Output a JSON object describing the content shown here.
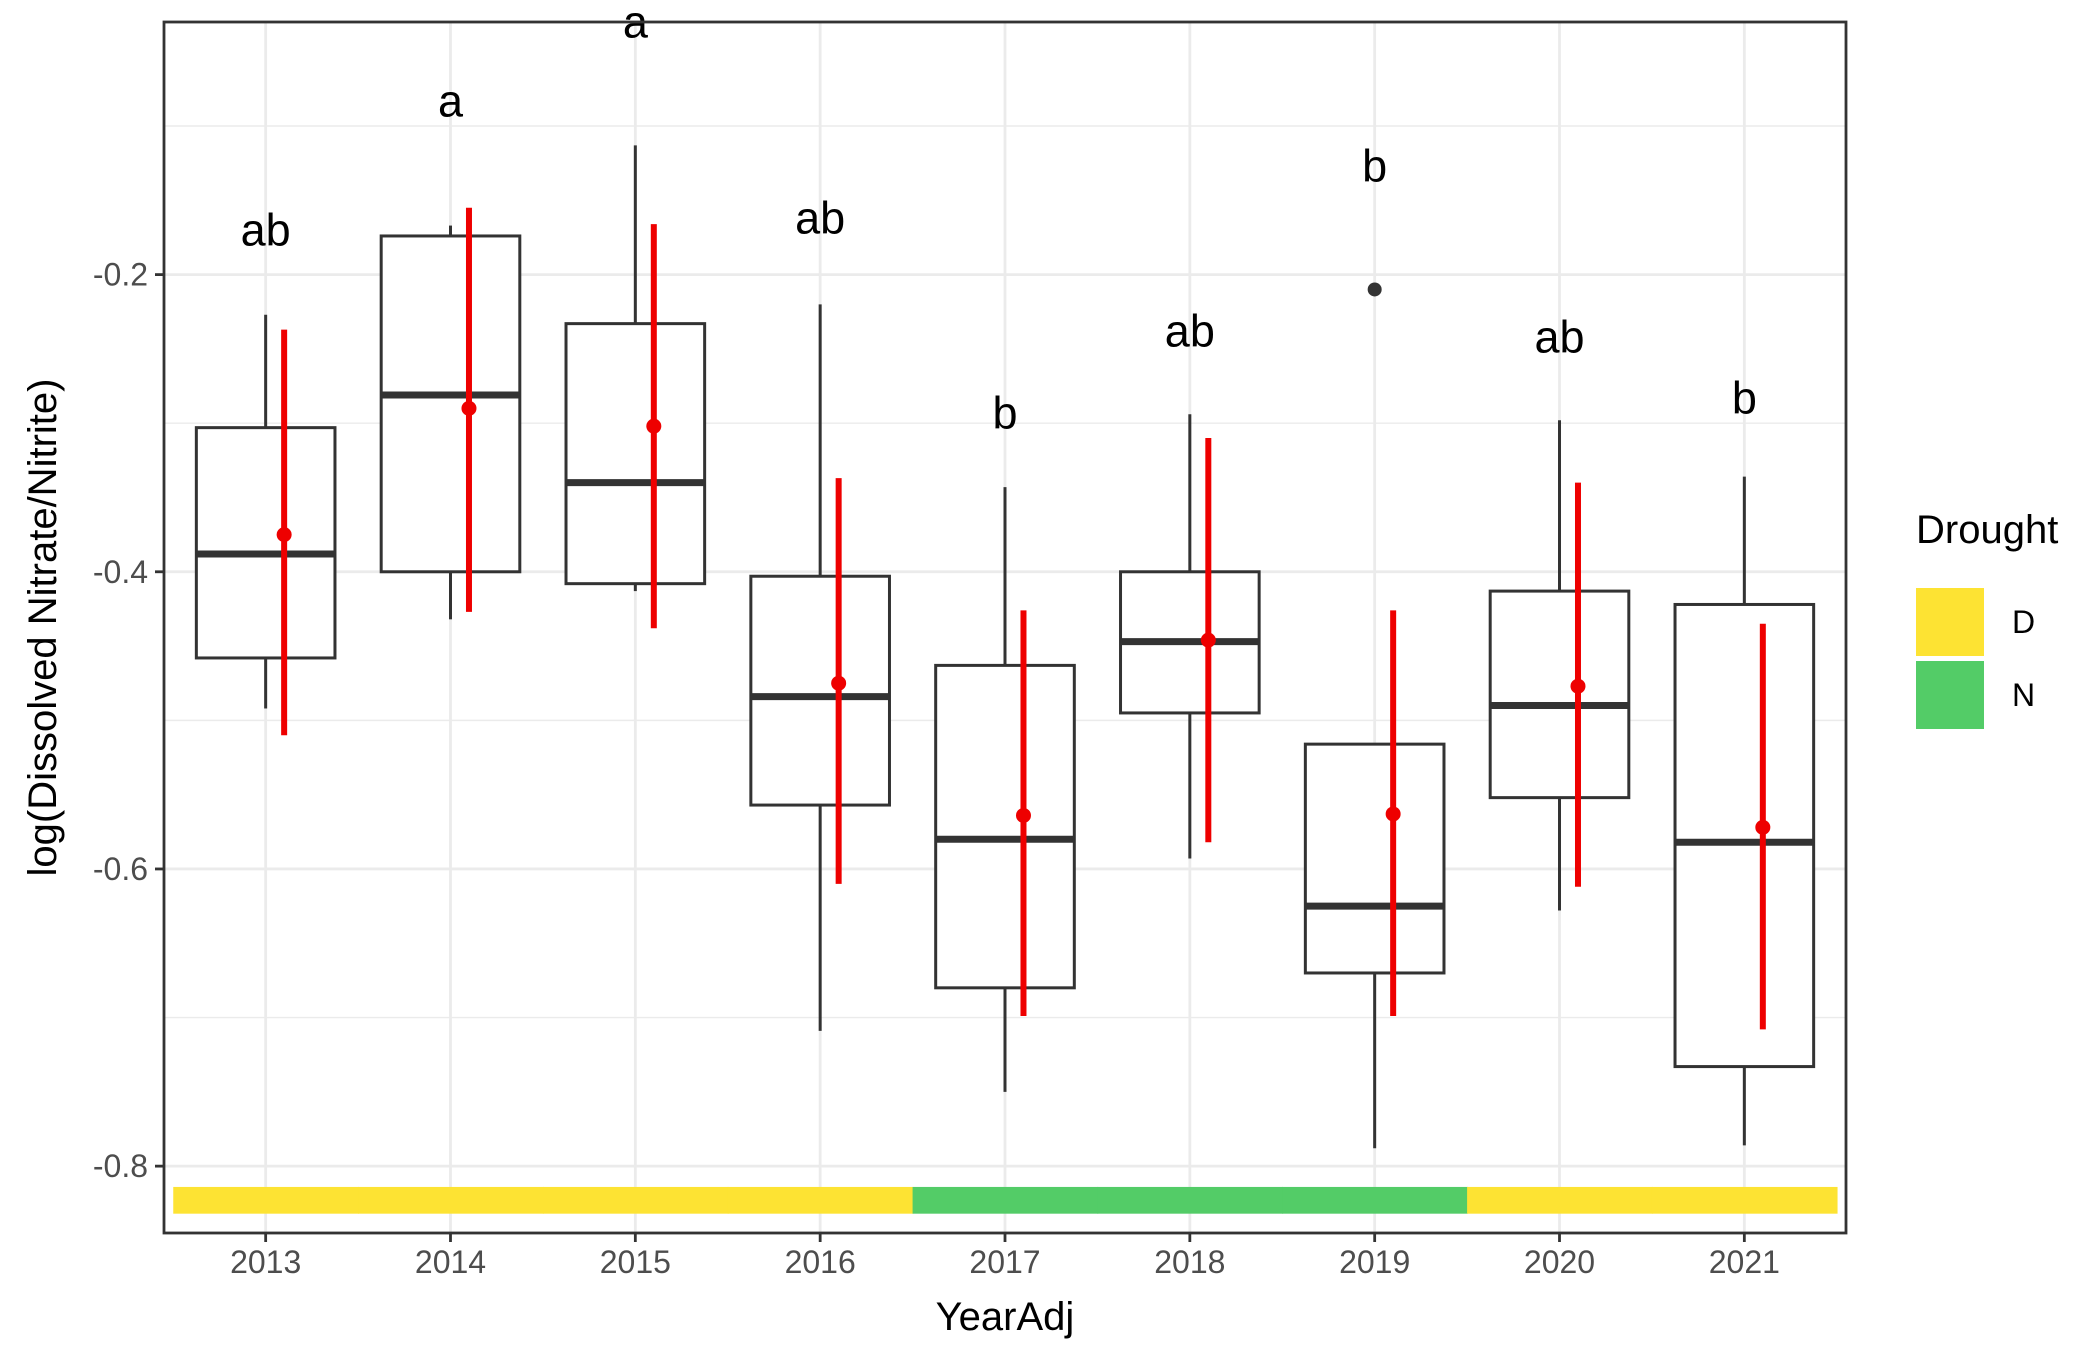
{
  "chart_data": {
    "type": "box",
    "xlabel": "YearAdj",
    "ylabel": "log(Dissolved Nitrate/Nitrite)",
    "categories": [
      "2013",
      "2014",
      "2015",
      "2016",
      "2017",
      "2018",
      "2019",
      "2020",
      "2021"
    ],
    "ylim": [
      -0.845,
      -0.03
    ],
    "yticks": [
      -0.8,
      -0.6,
      -0.4,
      -0.2
    ],
    "ytick_labels": [
      "-0.8",
      "-0.6",
      "-0.4",
      "-0.2"
    ],
    "grid": true,
    "boxes": [
      {
        "year": "2013",
        "min": -0.492,
        "q1": -0.458,
        "median": -0.388,
        "q3": -0.303,
        "max": -0.227,
        "outliers": []
      },
      {
        "year": "2014",
        "min": -0.432,
        "q1": -0.4,
        "median": -0.281,
        "q3": -0.174,
        "max": -0.167,
        "outliers": []
      },
      {
        "year": "2015",
        "min": -0.413,
        "q1": -0.408,
        "median": -0.34,
        "q3": -0.233,
        "max": -0.113,
        "outliers": []
      },
      {
        "year": "2016",
        "min": -0.709,
        "q1": -0.557,
        "median": -0.484,
        "q3": -0.403,
        "max": -0.22,
        "outliers": []
      },
      {
        "year": "2017",
        "min": -0.75,
        "q1": -0.68,
        "median": -0.58,
        "q3": -0.463,
        "max": -0.343,
        "outliers": []
      },
      {
        "year": "2018",
        "min": -0.593,
        "q1": -0.495,
        "median": -0.447,
        "q3": -0.4,
        "max": -0.294,
        "outliers": []
      },
      {
        "year": "2019",
        "min": -0.788,
        "q1": -0.67,
        "median": -0.625,
        "q3": -0.516,
        "max": -0.516,
        "outliers": [
          -0.21
        ]
      },
      {
        "year": "2020",
        "min": -0.628,
        "q1": -0.552,
        "median": -0.49,
        "q3": -0.413,
        "max": -0.298,
        "outliers": []
      },
      {
        "year": "2021",
        "min": -0.786,
        "q1": -0.733,
        "median": -0.582,
        "q3": -0.422,
        "max": -0.336,
        "outliers": []
      }
    ],
    "means": [
      {
        "year": "2013",
        "mean": -0.375,
        "lower": -0.51,
        "upper": -0.237
      },
      {
        "year": "2014",
        "mean": -0.29,
        "lower": -0.427,
        "upper": -0.155
      },
      {
        "year": "2015",
        "mean": -0.302,
        "lower": -0.438,
        "upper": -0.166
      },
      {
        "year": "2016",
        "mean": -0.475,
        "lower": -0.61,
        "upper": -0.337
      },
      {
        "year": "2017",
        "mean": -0.564,
        "lower": -0.699,
        "upper": -0.426
      },
      {
        "year": "2018",
        "mean": -0.446,
        "lower": -0.582,
        "upper": -0.31
      },
      {
        "year": "2019",
        "mean": -0.563,
        "lower": -0.699,
        "upper": -0.426
      },
      {
        "year": "2020",
        "mean": -0.477,
        "lower": -0.612,
        "upper": -0.34
      },
      {
        "year": "2021",
        "mean": -0.572,
        "lower": -0.708,
        "upper": -0.435
      }
    ],
    "group_letters": [
      {
        "year": "2013",
        "letter": "ab",
        "y": -0.17
      },
      {
        "year": "2014",
        "letter": "a",
        "y": -0.083
      },
      {
        "year": "2015",
        "letter": "a",
        "y": -0.03
      },
      {
        "year": "2016",
        "letter": "ab",
        "y": -0.162
      },
      {
        "year": "2017",
        "letter": "b",
        "y": -0.293
      },
      {
        "year": "2018",
        "letter": "ab",
        "y": -0.238
      },
      {
        "year": "2019",
        "letter": "b",
        "y": -0.127
      },
      {
        "year": "2020",
        "letter": "ab",
        "y": -0.242
      },
      {
        "year": "2021",
        "letter": "b",
        "y": -0.283
      }
    ],
    "drought": [
      {
        "year": "2013",
        "status": "D"
      },
      {
        "year": "2014",
        "status": "D"
      },
      {
        "year": "2015",
        "status": "D"
      },
      {
        "year": "2016",
        "status": "D"
      },
      {
        "year": "2017",
        "status": "N"
      },
      {
        "year": "2018",
        "status": "N"
      },
      {
        "year": "2019",
        "status": "N"
      },
      {
        "year": "2020",
        "status": "D"
      },
      {
        "year": "2021",
        "status": "D"
      }
    ],
    "legend": {
      "title": "Drought",
      "placement": "right",
      "entries": [
        {
          "key": "D",
          "label": "D",
          "color": "#FDE333"
        },
        {
          "key": "N",
          "label": "N",
          "color": "#53CC67"
        }
      ]
    },
    "colors": {
      "box": "#333333",
      "mean": "#EE0000",
      "grid": "#EBEBEB",
      "panel_border": "#333333"
    }
  }
}
